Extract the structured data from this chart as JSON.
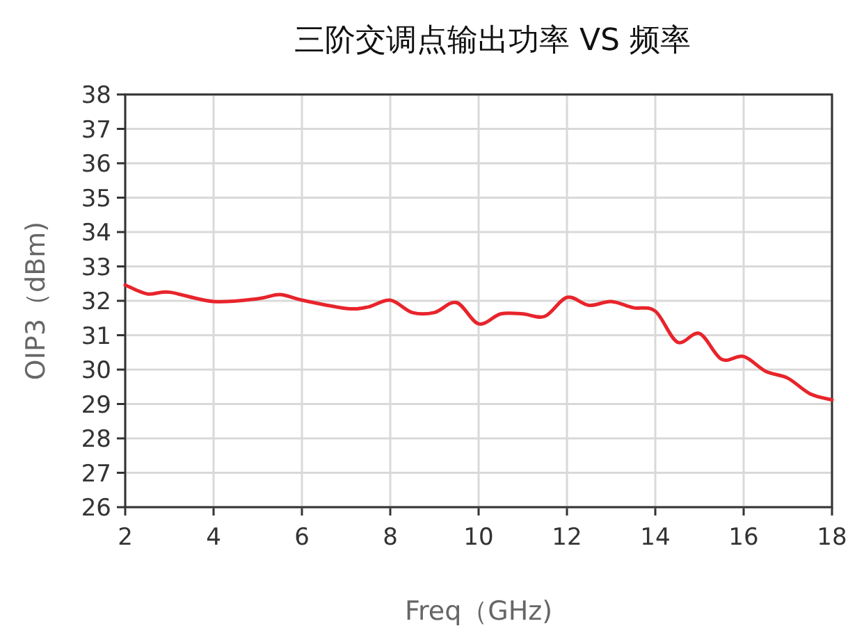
{
  "chart_data": {
    "type": "line",
    "title": "三阶交调点输出功率 VS 频率",
    "xlabel": "Freq（GHz)",
    "ylabel": "OIP3（dBm)",
    "x": [
      2,
      2.5,
      3,
      4,
      5,
      5.5,
      6,
      7,
      7.5,
      8,
      8.5,
      9,
      9.5,
      10,
      10.5,
      11,
      11.5,
      12,
      12.5,
      13,
      13.5,
      14,
      14.5,
      15,
      15.5,
      16,
      16.5,
      17,
      17.5,
      18
    ],
    "series": [
      {
        "color": "#e8242b",
        "values": [
          32.46,
          32.2,
          32.25,
          31.98,
          32.06,
          32.18,
          32.02,
          31.78,
          31.82,
          32.02,
          31.66,
          31.66,
          31.95,
          31.33,
          31.62,
          31.62,
          31.55,
          32.1,
          31.87,
          31.98,
          31.8,
          31.7,
          30.8,
          31.05,
          30.3,
          30.38,
          29.95,
          29.75,
          29.3,
          29.12
        ]
      }
    ],
    "xlim": [
      2,
      18
    ],
    "xticks": [
      2,
      4,
      6,
      8,
      10,
      12,
      14,
      16,
      18
    ],
    "ylim": [
      26,
      38
    ],
    "yticks": [
      26,
      27,
      28,
      29,
      30,
      31,
      32,
      33,
      34,
      35,
      36,
      37,
      38
    ],
    "grid": true,
    "marker": "none",
    "line_style": "solid"
  }
}
